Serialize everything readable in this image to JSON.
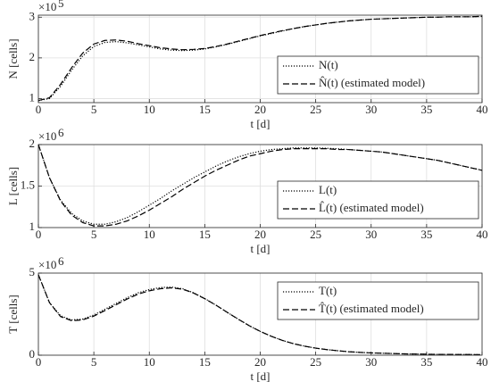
{
  "chart_data": [
    {
      "type": "line",
      "xlabel": "t [d]",
      "ylabel": "N [cells]",
      "y_multiplier": {
        "base": "×10",
        "exponent": "5"
      },
      "x": [
        0,
        1,
        2,
        3,
        4,
        5,
        6,
        7,
        8,
        9,
        10,
        11,
        12,
        13,
        14,
        15,
        16,
        17,
        18,
        19,
        20,
        21,
        22,
        23,
        24,
        25,
        26,
        27,
        28,
        29,
        30,
        31,
        32,
        33,
        34,
        35,
        36,
        37,
        38,
        39,
        40
      ],
      "series": [
        {
          "name": "N(t)",
          "color": "#000000",
          "style": "dotted",
          "values": [
            0.95,
            1.0,
            1.3,
            1.7,
            2.05,
            2.28,
            2.38,
            2.4,
            2.37,
            2.32,
            2.27,
            2.22,
            2.19,
            2.18,
            2.19,
            2.22,
            2.27,
            2.33,
            2.4,
            2.47,
            2.54,
            2.6,
            2.66,
            2.72,
            2.77,
            2.81,
            2.85,
            2.88,
            2.91,
            2.93,
            2.95,
            2.96,
            2.97,
            2.98,
            2.99,
            3.0,
            3.0,
            3.01,
            3.01,
            3.01,
            3.02
          ]
        },
        {
          "name": "N̂(t) (estimated model)",
          "color": "#000000",
          "style": "dashed",
          "values": [
            0.95,
            1.02,
            1.35,
            1.76,
            2.12,
            2.34,
            2.43,
            2.44,
            2.41,
            2.35,
            2.3,
            2.25,
            2.22,
            2.2,
            2.21,
            2.23,
            2.28,
            2.34,
            2.41,
            2.48,
            2.55,
            2.61,
            2.67,
            2.72,
            2.77,
            2.81,
            2.85,
            2.88,
            2.91,
            2.93,
            2.95,
            2.96,
            2.97,
            2.98,
            2.99,
            3.0,
            3.0,
            3.01,
            3.01,
            3.01,
            3.02
          ]
        }
      ],
      "xlim": [
        0,
        40
      ],
      "xticks": [
        0,
        5,
        10,
        15,
        20,
        25,
        30,
        35,
        40
      ],
      "ylim": [
        0.9,
        3.05
      ],
      "yticks": [
        1,
        2,
        3
      ],
      "grid": true,
      "legend": "lower right"
    },
    {
      "type": "line",
      "xlabel": "t [d]",
      "ylabel": "L [cells]",
      "y_multiplier": {
        "base": "×10",
        "exponent": "6"
      },
      "x": [
        0,
        1,
        2,
        3,
        4,
        5,
        6,
        7,
        8,
        9,
        10,
        11,
        12,
        13,
        14,
        15,
        16,
        17,
        18,
        19,
        20,
        21,
        22,
        23,
        24,
        25,
        26,
        27,
        28,
        29,
        30,
        31,
        32,
        33,
        34,
        35,
        36,
        37,
        38,
        39,
        40
      ],
      "series": [
        {
          "name": "L(t)",
          "color": "#000000",
          "style": "dotted",
          "values": [
            2.0,
            1.6,
            1.33,
            1.17,
            1.08,
            1.04,
            1.04,
            1.07,
            1.12,
            1.19,
            1.27,
            1.35,
            1.44,
            1.52,
            1.6,
            1.67,
            1.74,
            1.8,
            1.85,
            1.89,
            1.92,
            1.94,
            1.95,
            1.96,
            1.96,
            1.96,
            1.955,
            1.95,
            1.94,
            1.93,
            1.92,
            1.91,
            1.89,
            1.87,
            1.85,
            1.83,
            1.81,
            1.78,
            1.75,
            1.72,
            1.69
          ]
        },
        {
          "name": "L̂(t) (estimated model)",
          "color": "#000000",
          "style": "dashed",
          "values": [
            2.0,
            1.6,
            1.32,
            1.15,
            1.06,
            1.02,
            1.02,
            1.04,
            1.08,
            1.14,
            1.21,
            1.29,
            1.37,
            1.46,
            1.54,
            1.62,
            1.69,
            1.75,
            1.81,
            1.86,
            1.89,
            1.92,
            1.94,
            1.95,
            1.95,
            1.95,
            1.95,
            1.94,
            1.94,
            1.93,
            1.92,
            1.91,
            1.89,
            1.87,
            1.85,
            1.83,
            1.81,
            1.78,
            1.75,
            1.72,
            1.69
          ]
        }
      ],
      "xlim": [
        0,
        40
      ],
      "xticks": [
        0,
        5,
        10,
        15,
        20,
        25,
        30,
        35,
        40
      ],
      "ylim": [
        1,
        2
      ],
      "yticks": [
        1,
        1.5,
        2
      ],
      "grid": true,
      "legend": "lower right"
    },
    {
      "type": "line",
      "xlabel": "t [d]",
      "ylabel": "T [cells]",
      "y_multiplier": {
        "base": "×10",
        "exponent": "6"
      },
      "x": [
        0,
        1,
        2,
        3,
        4,
        5,
        6,
        7,
        8,
        9,
        10,
        11,
        12,
        13,
        14,
        15,
        16,
        17,
        18,
        19,
        20,
        21,
        22,
        23,
        24,
        25,
        26,
        27,
        28,
        29,
        30,
        31,
        32,
        33,
        34,
        35,
        36,
        37,
        38,
        39,
        40
      ],
      "series": [
        {
          "name": "T(t)",
          "color": "#000000",
          "style": "dotted",
          "values": [
            4.9,
            3.2,
            2.4,
            2.15,
            2.2,
            2.45,
            2.8,
            3.15,
            3.5,
            3.8,
            4.0,
            4.12,
            4.15,
            4.05,
            3.8,
            3.45,
            3.05,
            2.62,
            2.2,
            1.8,
            1.45,
            1.15,
            0.9,
            0.7,
            0.55,
            0.43,
            0.34,
            0.27,
            0.21,
            0.17,
            0.14,
            0.12,
            0.1,
            0.08,
            0.07,
            0.06,
            0.05,
            0.05,
            0.04,
            0.04,
            0.03
          ]
        },
        {
          "name": "T̂(t) (estimated model)",
          "color": "#000000",
          "style": "dashed",
          "values": [
            4.9,
            3.2,
            2.35,
            2.1,
            2.15,
            2.38,
            2.72,
            3.07,
            3.42,
            3.72,
            3.92,
            4.05,
            4.1,
            4.02,
            3.78,
            3.44,
            3.05,
            2.62,
            2.2,
            1.8,
            1.45,
            1.15,
            0.9,
            0.7,
            0.55,
            0.43,
            0.34,
            0.27,
            0.21,
            0.17,
            0.14,
            0.12,
            0.1,
            0.08,
            0.07,
            0.06,
            0.05,
            0.05,
            0.04,
            0.04,
            0.03
          ]
        }
      ],
      "xlim": [
        0,
        40
      ],
      "xticks": [
        0,
        5,
        10,
        15,
        20,
        25,
        30,
        35,
        40
      ],
      "ylim": [
        0,
        5
      ],
      "yticks": [
        0,
        5
      ],
      "grid": true,
      "legend": "upper right"
    }
  ]
}
